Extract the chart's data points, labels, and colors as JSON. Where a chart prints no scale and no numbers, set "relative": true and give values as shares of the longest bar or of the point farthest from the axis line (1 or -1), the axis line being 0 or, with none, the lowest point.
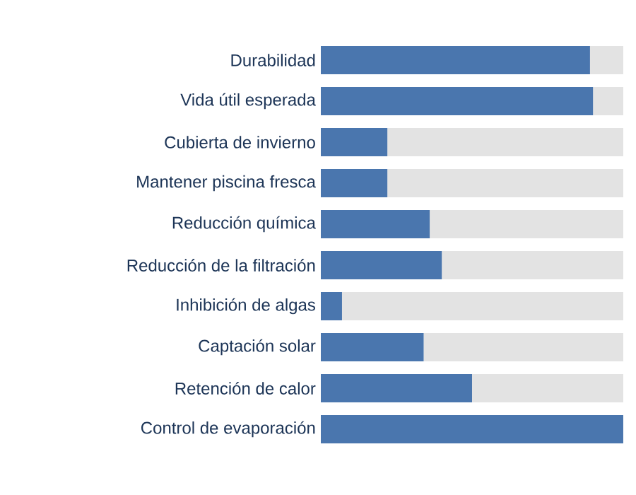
{
  "chart_data": {
    "type": "bar",
    "orientation": "horizontal",
    "stacked": true,
    "relative": true,
    "categories": [
      "Durabilidad",
      "Vida útil esperada",
      "Cubierta de invierno",
      "Mantener piscina fresca",
      "Reducción química",
      "Reducción de la filtración",
      "Inhibición de algas",
      "Captación solar",
      "Retención de calor",
      "Control de evaporación"
    ],
    "series": [
      {
        "color": "#4a76ae",
        "values": [
          0.89,
          0.9,
          0.22,
          0.22,
          0.36,
          0.4,
          0.07,
          0.34,
          0.5,
          1.0
        ]
      },
      {
        "color": "#e3e3e3",
        "values": [
          0.11,
          0.1,
          0.78,
          0.78,
          0.64,
          0.6,
          0.93,
          0.66,
          0.5,
          0.0
        ]
      }
    ]
  }
}
